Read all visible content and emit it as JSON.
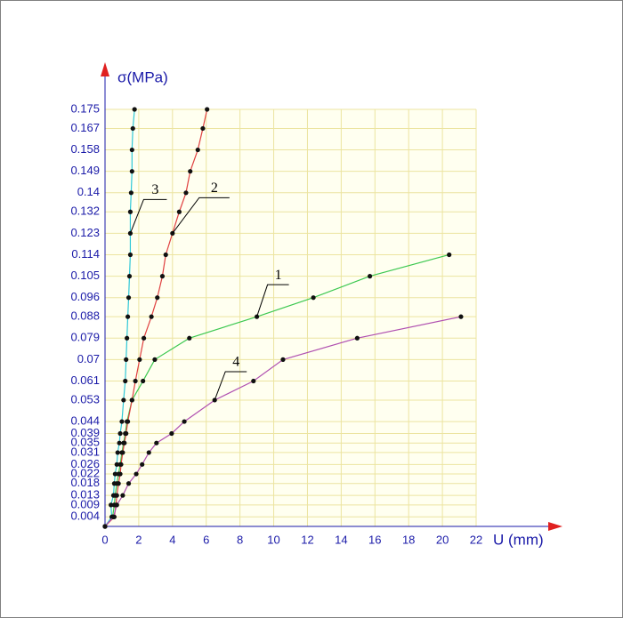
{
  "chart_data": {
    "type": "line",
    "y_label": "σ(MPa)",
    "x_label": "U (mm)",
    "xlim": [
      0,
      22
    ],
    "ylim": [
      0,
      0.175
    ],
    "xticks": [
      0,
      2,
      4,
      6,
      8,
      10,
      12,
      14,
      16,
      18,
      20,
      22
    ],
    "yticks": [
      0.004,
      0.009,
      0.013,
      0.018,
      0.022,
      0.026,
      0.031,
      0.035,
      0.039,
      0.044,
      0.053,
      0.061,
      0.07,
      0.079,
      0.088,
      0.096,
      0.105,
      0.114,
      0.123,
      0.132,
      0.14,
      0.149,
      0.158,
      0.167,
      0.175
    ],
    "grid": true,
    "series": [
      {
        "name": "1",
        "color": "#3cc850",
        "x": [
          0,
          0.45,
          0.55,
          0.6,
          0.7,
          0.8,
          0.9,
          1.0,
          1.1,
          1.2,
          1.3,
          1.6,
          2.25,
          2.95,
          5.0,
          9.0,
          12.35,
          15.7,
          20.4
        ],
        "values": [
          0,
          0.004,
          0.009,
          0.013,
          0.018,
          0.022,
          0.026,
          0.031,
          0.035,
          0.039,
          0.044,
          0.053,
          0.061,
          0.07,
          0.079,
          0.088,
          0.096,
          0.105,
          0.114
        ]
      },
      {
        "name": "2",
        "color": "#e04040",
        "x": [
          0,
          0.55,
          0.65,
          0.7,
          0.8,
          0.9,
          0.95,
          1.05,
          1.15,
          1.25,
          1.35,
          1.6,
          1.8,
          2.05,
          2.3,
          2.75,
          3.1,
          3.4,
          3.6,
          4.0,
          4.4,
          4.8,
          5.05,
          5.5,
          5.8,
          6.05
        ],
        "values": [
          0,
          0.004,
          0.009,
          0.013,
          0.018,
          0.022,
          0.026,
          0.031,
          0.035,
          0.039,
          0.044,
          0.053,
          0.061,
          0.07,
          0.079,
          0.088,
          0.096,
          0.105,
          0.114,
          0.123,
          0.132,
          0.14,
          0.149,
          0.158,
          0.167,
          0.175
        ]
      },
      {
        "name": "3",
        "color": "#30c8d8",
        "x": [
          0,
          0.4,
          0.35,
          0.5,
          0.55,
          0.6,
          0.7,
          0.75,
          0.85,
          0.9,
          1.0,
          1.1,
          1.2,
          1.25,
          1.3,
          1.35,
          1.4,
          1.45,
          1.5,
          1.5,
          1.5,
          1.55,
          1.6,
          1.6,
          1.65,
          1.75
        ],
        "values": [
          0,
          0.004,
          0.009,
          0.013,
          0.018,
          0.022,
          0.026,
          0.031,
          0.035,
          0.039,
          0.044,
          0.053,
          0.061,
          0.07,
          0.079,
          0.088,
          0.096,
          0.105,
          0.114,
          0.123,
          0.132,
          0.14,
          0.149,
          0.158,
          0.167,
          0.175
        ]
      },
      {
        "name": "4",
        "color": "#b050b0",
        "x": [
          0,
          0.5,
          0.7,
          1.05,
          1.4,
          1.85,
          2.2,
          2.6,
          3.05,
          3.95,
          4.7,
          6.5,
          8.8,
          10.55,
          14.95,
          21.1
        ],
        "values": [
          0,
          0.004,
          0.009,
          0.013,
          0.018,
          0.022,
          0.026,
          0.031,
          0.035,
          0.039,
          0.044,
          0.053,
          0.061,
          0.07,
          0.079,
          0.088
        ]
      }
    ]
  }
}
